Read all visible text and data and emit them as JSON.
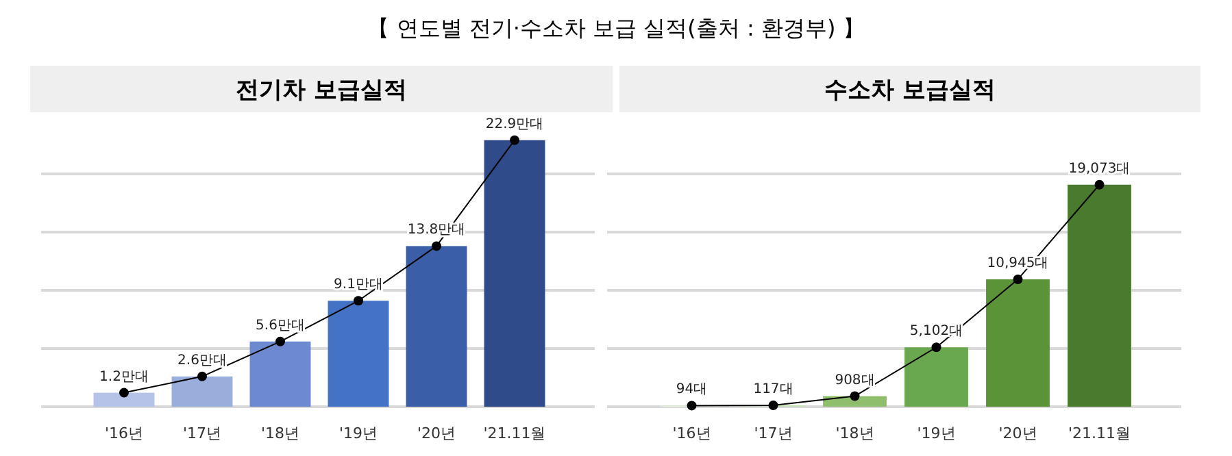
{
  "chart_data": [
    {
      "type": "bar",
      "title": "전기차 보급실적",
      "annotations": [
        "【 연도별 전기·수소차 보급 실적(출처 : 환경부) 】"
      ],
      "categories": [
        "'16년",
        "'17년",
        "'18년",
        "'19년",
        "'20년",
        "'21.11월"
      ],
      "yticks": [
        {
          "value": 0,
          "label": null
        },
        {
          "value": 5,
          "label": null
        },
        {
          "value": 10,
          "label": null
        },
        {
          "value": 15,
          "label": null
        },
        {
          "value": 20,
          "label": null
        }
      ],
      "grid": "y",
      "tick_labels": "x",
      "series": [
        {
          "colors": [
            "#b4c3e7",
            "#9aaedc",
            "#6d8ad0",
            "#4472c4",
            "#3a5ea8",
            "#2f4b8a"
          ],
          "values": [
            1.2,
            2.6,
            5.6,
            9.1,
            13.8,
            22.9
          ],
          "value_labels": [
            "1.2만대",
            "2.6만대",
            "5.6만대",
            "9.1만대",
            "13.8만대",
            "22.9만대"
          ]
        },
        {
          "type": "line",
          "color": "#000000",
          "marker": "circle",
          "values": [
            1.2,
            2.6,
            5.6,
            9.1,
            13.8,
            22.9
          ]
        }
      ]
    },
    {
      "type": "bar",
      "title": "수소차 보급실적",
      "categories": [
        "'16년",
        "'17년",
        "'18년",
        "'19년",
        "'20년",
        "'21.11월"
      ],
      "yticks": [
        {
          "value": 0,
          "label": null
        },
        {
          "value": 5000,
          "label": null
        },
        {
          "value": 10000,
          "label": null
        },
        {
          "value": 15000,
          "label": null
        },
        {
          "value": 20000,
          "label": null
        }
      ],
      "grid": "y",
      "tick_labels": "x",
      "series": [
        {
          "colors": [
            "#e2efd9",
            "#c5e0b3",
            "#8fbf6c",
            "#6aa84f",
            "#5b9339",
            "#4a7a2e"
          ],
          "values": [
            94,
            117,
            908,
            5102,
            10945,
            19073
          ],
          "value_labels": [
            "94대",
            "117대",
            "908대",
            "5,102대",
            "10,945대",
            "19,073대"
          ]
        },
        {
          "type": "line",
          "color": "#000000",
          "marker": "circle",
          "values": [
            94,
            117,
            908,
            5102,
            10945,
            19073
          ]
        }
      ]
    }
  ]
}
